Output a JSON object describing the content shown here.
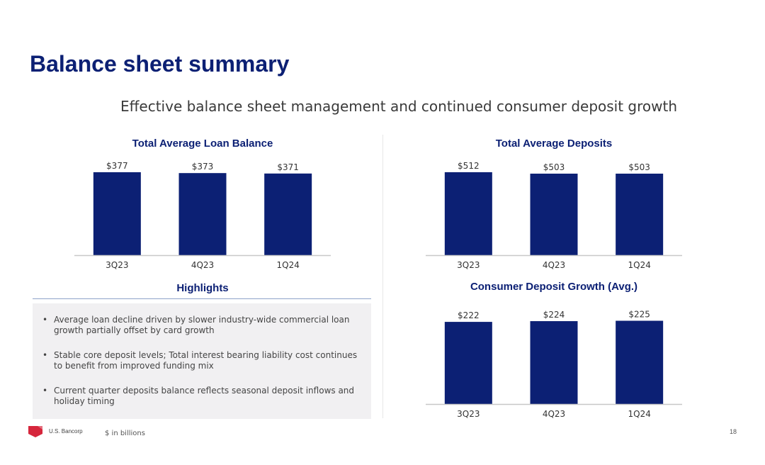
{
  "slide": {
    "title": "Balance sheet summary",
    "subtitle": "Effective balance sheet management and continued consumer deposit growth"
  },
  "chart_data": [
    {
      "type": "bar",
      "title": "Total Average Loan Balance",
      "categories": [
        "3Q23",
        "4Q23",
        "1Q24"
      ],
      "values": [
        377,
        373,
        371
      ],
      "value_labels": [
        "$377",
        "$373",
        "$371"
      ],
      "xlabel": "",
      "ylabel": "",
      "ylim": [
        0,
        380
      ],
      "grid": false,
      "bar_color": "#0c2074"
    },
    {
      "type": "bar",
      "title": "Total Average Deposits",
      "categories": [
        "3Q23",
        "4Q23",
        "1Q24"
      ],
      "values": [
        512,
        503,
        503
      ],
      "value_labels": [
        "$512",
        "$503",
        "$503"
      ],
      "xlabel": "",
      "ylabel": "",
      "ylim": [
        0,
        516
      ],
      "grid": false,
      "bar_color": "#0c2074"
    },
    {
      "type": "bar",
      "title": "Consumer Deposit Growth (Avg.)",
      "categories": [
        "3Q23",
        "4Q23",
        "1Q24"
      ],
      "values": [
        222,
        224,
        225
      ],
      "value_labels": [
        "$222",
        "$224",
        "$225"
      ],
      "xlabel": "",
      "ylabel": "",
      "ylim": [
        0,
        226
      ],
      "grid": false,
      "bar_color": "#0c2074"
    }
  ],
  "highlights": {
    "title": "Highlights",
    "items": [
      "Average loan decline driven by slower industry-wide commercial loan growth partially offset by card growth",
      "Stable core deposit levels; Total interest bearing liability cost continues to benefit from improved funding mix",
      "Current quarter deposits balance reflects seasonal deposit inflows and holiday timing"
    ]
  },
  "footer": {
    "brand": "U.S. Bancorp",
    "note": "$ in billions",
    "page_number": "18",
    "logo_color": "#d6263c",
    "logo_icon": "shield-logo-icon"
  },
  "colors": {
    "brand_navy": "#0c2074",
    "axis_gray": "#c8c8c8",
    "panel_gray": "#f1f0f2"
  }
}
